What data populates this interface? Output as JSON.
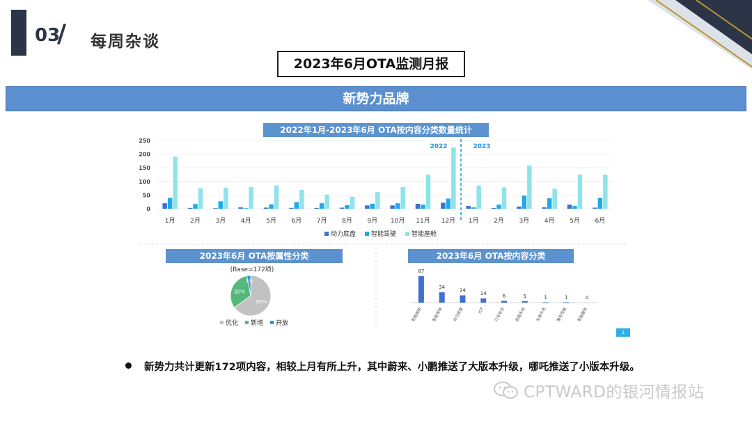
{
  "header": {
    "section_number": "03",
    "section_slash": "/",
    "section_title": "每周杂谈"
  },
  "report_title": "2023年6月OTA监测月报",
  "band_title": "新势力品牌",
  "panels": {
    "monthly_title": "2022年1月-2023年6月 OTA按内容分类数量统计",
    "attr_title": "2023年6月 OTA按属性分类",
    "content_title": "2023年6月 OTA按内容分类"
  },
  "bullet": "新势力共计更新172项内容，相较上月有所上升，其中蔚来、小鹏推送了大版本升级，哪吒推送了小版本升级。",
  "watermark": "CPTWARD的银河情报站",
  "small_button": "1",
  "colors": {
    "dark": "#2c3547",
    "band": "#5b8fd0",
    "series1": "#3f6fd1",
    "series2": "#1eaaea",
    "series3": "#8fe3ea",
    "pie_gray": "#c2c2c2",
    "pie_green": "#54b87a",
    "pie_blue": "#2a93e0"
  },
  "chart_data": [
    {
      "type": "bar",
      "title": "2022年1月-2023年6月 OTA按内容分类数量统计",
      "categories": [
        "1月",
        "2月",
        "3月",
        "4月",
        "5月",
        "6月",
        "7月",
        "8月",
        "9月",
        "10月",
        "11月",
        "12月",
        "1月",
        "2月",
        "3月",
        "4月",
        "5月",
        "6月"
      ],
      "year_labels": [
        "2022",
        "2023"
      ],
      "series": [
        {
          "name": "动力底盘",
          "values": [
            20,
            3,
            2,
            5,
            4,
            3,
            3,
            4,
            12,
            12,
            18,
            22,
            10,
            3,
            8,
            5,
            15,
            4
          ]
        },
        {
          "name": "智能驾驶",
          "values": [
            40,
            17,
            27,
            2,
            16,
            24,
            20,
            13,
            18,
            20,
            15,
            37,
            5,
            15,
            48,
            38,
            10,
            40
          ]
        },
        {
          "name": "智能座舱",
          "values": [
            191,
            75,
            77,
            79,
            85,
            69,
            52,
            44,
            61,
            79,
            125,
            225,
            85,
            78,
            159,
            73,
            125,
            125
          ]
        }
      ],
      "yticks": [
        0,
        50,
        100,
        150,
        200,
        250
      ],
      "ylim": [
        0,
        250
      ],
      "legend": "bottom"
    },
    {
      "type": "pie",
      "title": "2023年6月 OTA按属性分类",
      "subtitle": "(Base=172项)",
      "slices": [
        {
          "name": "优化",
          "value": 65,
          "label": "65%"
        },
        {
          "name": "新增",
          "value": 32,
          "label": "32%"
        },
        {
          "name": "开放",
          "value": 3,
          "label": "3%"
        }
      ],
      "legend": "bottom"
    },
    {
      "type": "bar",
      "title": "2023年6月 OTA按内容分类",
      "categories": [
        "智能座舱",
        "智能驾驶",
        "动力底盘",
        "IOT",
        "行车安全",
        "底盘系统",
        "车身外观",
        "整车性能",
        "智能服务"
      ],
      "values": [
        87,
        34,
        24,
        14,
        6,
        5,
        1,
        1,
        0
      ],
      "ylim": [
        0,
        100
      ]
    }
  ]
}
